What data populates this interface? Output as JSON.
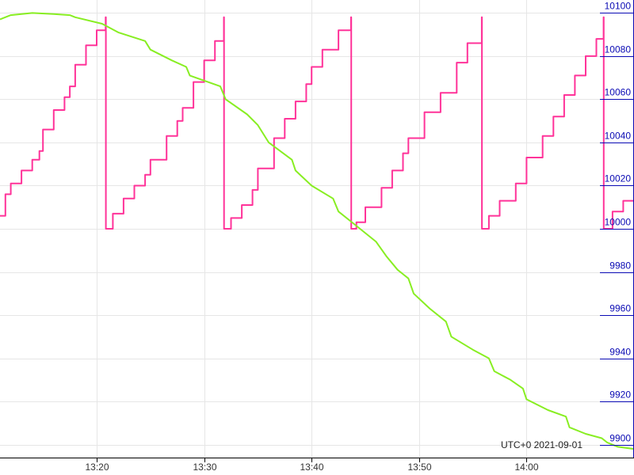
{
  "chart_data": {
    "type": "line",
    "title": "",
    "xlabel": "",
    "ylabel": "",
    "timezone_label": "UTC+0 2021-09-01",
    "x_range": [
      "13:11",
      "14:10"
    ],
    "y_range": [
      9894,
      10106
    ],
    "x_ticks": [
      "13:20",
      "13:30",
      "13:40",
      "13:50",
      "14:00"
    ],
    "y_ticks": [
      9900,
      9920,
      9940,
      9960,
      9980,
      10000,
      10020,
      10040,
      10060,
      10080,
      10100
    ],
    "y_axis_side": "right",
    "grid": true,
    "colors": {
      "sawtooth": "#ff3399",
      "decline": "#88ee22",
      "y_axis": "#0a0ab4"
    },
    "series": [
      {
        "key": "sawtooth",
        "style": "step",
        "points": [
          [
            "13:11:00",
            10006
          ],
          [
            "13:11:30",
            10016
          ],
          [
            "13:12:00",
            10021
          ],
          [
            "13:13:00",
            10027
          ],
          [
            "13:14:00",
            10032
          ],
          [
            "13:14:40",
            10036
          ],
          [
            "13:15:00",
            10046
          ],
          [
            "13:16:00",
            10055
          ],
          [
            "13:17:00",
            10061
          ],
          [
            "13:17:30",
            10066
          ],
          [
            "13:18:00",
            10076
          ],
          [
            "13:19:00",
            10085
          ],
          [
            "13:20:00",
            10092
          ],
          [
            "13:20:50",
            10098
          ],
          [
            "13:20:51",
            10000
          ],
          [
            "13:21:30",
            10007
          ],
          [
            "13:22:30",
            10014
          ],
          [
            "13:23:30",
            10020
          ],
          [
            "13:24:30",
            10025
          ],
          [
            "13:25:00",
            10032
          ],
          [
            "13:26:30",
            10043
          ],
          [
            "13:27:30",
            10050
          ],
          [
            "13:28:00",
            10056
          ],
          [
            "13:29:00",
            10068
          ],
          [
            "13:30:00",
            10078
          ],
          [
            "13:31:00",
            10087
          ],
          [
            "13:31:50",
            10098
          ],
          [
            "13:31:51",
            10000
          ],
          [
            "13:32:30",
            10005
          ],
          [
            "13:33:30",
            10011
          ],
          [
            "13:34:30",
            10018
          ],
          [
            "13:35:00",
            10028
          ],
          [
            "13:36:30",
            10042
          ],
          [
            "13:37:30",
            10051
          ],
          [
            "13:38:30",
            10059
          ],
          [
            "13:39:30",
            10067
          ],
          [
            "13:40:00",
            10075
          ],
          [
            "13:41:00",
            10083
          ],
          [
            "13:42:30",
            10092
          ],
          [
            "13:43:40",
            10098
          ],
          [
            "13:43:41",
            10000
          ],
          [
            "13:44:10",
            10003
          ],
          [
            "13:45:00",
            10010
          ],
          [
            "13:46:30",
            10019
          ],
          [
            "13:47:30",
            10027
          ],
          [
            "13:48:30",
            10035
          ],
          [
            "13:49:00",
            10042
          ],
          [
            "13:50:30",
            10054
          ],
          [
            "13:52:00",
            10063
          ],
          [
            "13:53:30",
            10077
          ],
          [
            "13:54:30",
            10086
          ],
          [
            "13:55:50",
            10098
          ],
          [
            "13:55:51",
            10000
          ],
          [
            "13:56:30",
            10006
          ],
          [
            "13:57:30",
            10013
          ],
          [
            "13:59:00",
            10021
          ],
          [
            "14:00:00",
            10033
          ],
          [
            "14:01:30",
            10043
          ],
          [
            "14:02:30",
            10052
          ],
          [
            "14:03:30",
            10062
          ],
          [
            "14:04:30",
            10071
          ],
          [
            "14:05:30",
            10080
          ],
          [
            "14:06:30",
            10088
          ],
          [
            "14:07:10",
            10098
          ],
          [
            "14:07:11",
            10000
          ],
          [
            "14:08:00",
            10008
          ],
          [
            "14:09:00",
            10013
          ],
          [
            "14:10:00",
            10018
          ]
        ]
      },
      {
        "key": "decline",
        "style": "line",
        "points": [
          [
            "13:11:00",
            10097
          ],
          [
            "13:12:00",
            10099
          ],
          [
            "13:14:00",
            10100
          ],
          [
            "13:16:00",
            10099.5
          ],
          [
            "13:17:30",
            10099
          ],
          [
            "13:18:00",
            10098
          ],
          [
            "13:20:30",
            10095
          ],
          [
            "13:22:00",
            10091
          ],
          [
            "13:24:30",
            10087
          ],
          [
            "13:25:00",
            10083
          ],
          [
            "13:27:00",
            10078
          ],
          [
            "13:28:20",
            10075
          ],
          [
            "13:28:40",
            10071
          ],
          [
            "13:31:30",
            10066
          ],
          [
            "13:32:00",
            10060
          ],
          [
            "13:34:00",
            10053
          ],
          [
            "13:35:00",
            10048
          ],
          [
            "13:36:00",
            10040
          ],
          [
            "13:38:10",
            10032
          ],
          [
            "13:38:30",
            10027
          ],
          [
            "13:40:00",
            10020
          ],
          [
            "13:42:00",
            10014
          ],
          [
            "13:42:30",
            10008
          ],
          [
            "13:44:00",
            10002
          ],
          [
            "13:46:00",
            9994
          ],
          [
            "13:47:00",
            9987
          ],
          [
            "13:48:00",
            9981
          ],
          [
            "13:49:00",
            9977
          ],
          [
            "13:49:30",
            9970
          ],
          [
            "13:51:00",
            9963
          ],
          [
            "13:52:30",
            9957
          ],
          [
            "13:53:00",
            9950
          ],
          [
            "13:55:00",
            9944
          ],
          [
            "13:56:30",
            9940
          ],
          [
            "13:57:00",
            9934
          ],
          [
            "13:58:30",
            9930
          ],
          [
            "13:59:40",
            9926
          ],
          [
            "14:00:00",
            9921
          ],
          [
            "14:02:00",
            9916
          ],
          [
            "14:03:40",
            9913
          ],
          [
            "14:04:00",
            9908
          ],
          [
            "14:05:30",
            9905
          ],
          [
            "14:07:00",
            9903
          ],
          [
            "14:07:30",
            9901
          ],
          [
            "14:08:30",
            9899
          ],
          [
            "14:10:00",
            9898
          ]
        ]
      }
    ]
  }
}
